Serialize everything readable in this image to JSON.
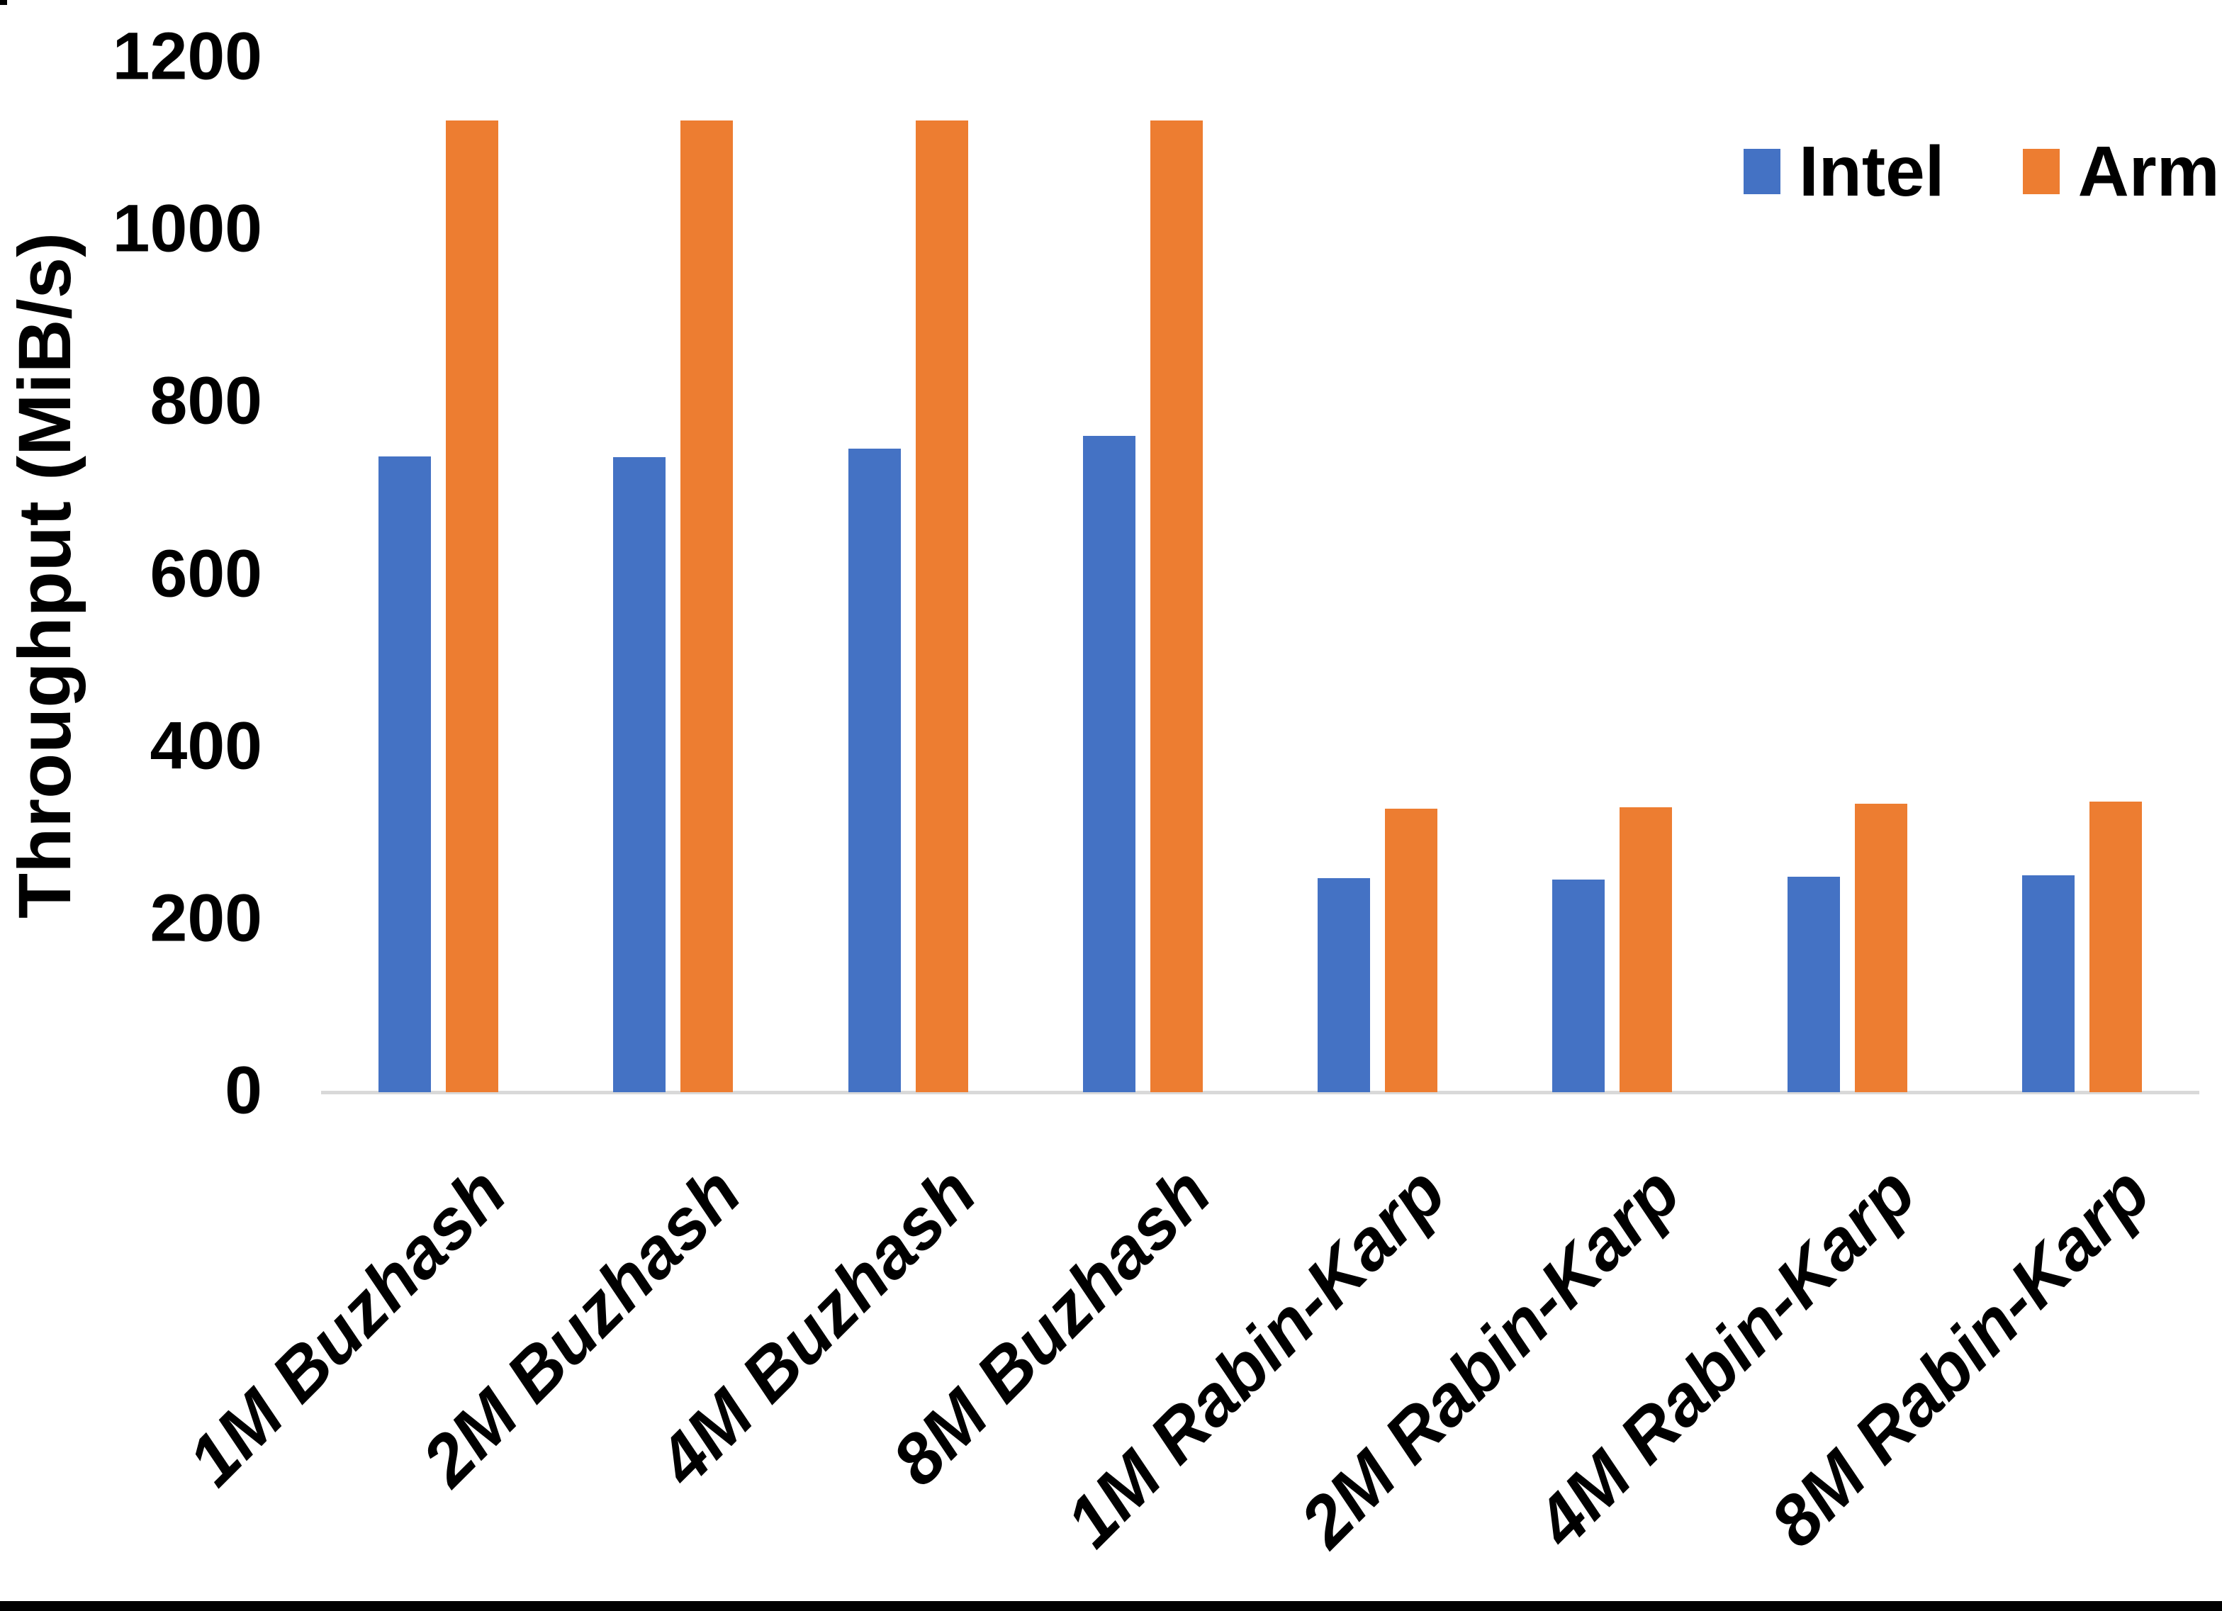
{
  "chart_data": {
    "type": "bar",
    "title": "",
    "xlabel": "",
    "ylabel": "Throughput (MiB/s)",
    "ylim": [
      0,
      1200
    ],
    "yticks": [
      0,
      200,
      400,
      600,
      800,
      1000,
      1200
    ],
    "grid": false,
    "legend_position": "top-right",
    "categories": [
      "1M Buzhash",
      "2M Buzhash",
      "4M Buzhash",
      "8M Buzhash",
      "1M Rabin-Karp",
      "2M Rabin-Karp",
      "4M Rabin-Karp",
      "8M Rabin-Karp"
    ],
    "series": [
      {
        "name": "Intel",
        "color": "#4472C4",
        "values": [
          738,
          737,
          747,
          762,
          248,
          247,
          250,
          252
        ]
      },
      {
        "name": "Arm",
        "color": "#ED7D31",
        "values": [
          1128,
          1128,
          1128,
          1128,
          329,
          331,
          335,
          337
        ]
      }
    ],
    "colors": {
      "axis_line": "#d9d9d9",
      "text": "#000000",
      "background": "#ffffff"
    }
  }
}
